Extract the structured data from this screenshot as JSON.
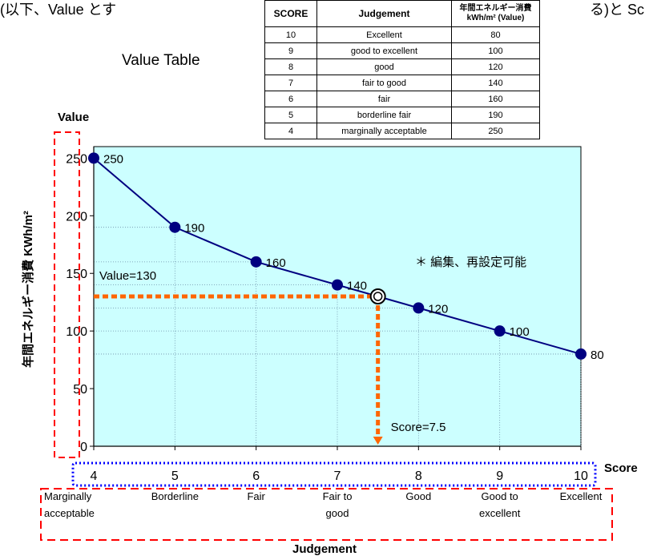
{
  "header": {
    "left_text": "(以下、Value とす",
    "right_text": "る)と Sc"
  },
  "value_table": {
    "title": "Value Table",
    "headers": [
      "SCORE",
      "Judgement",
      "年間エネルギー消費",
      "kWh/m² (Value)"
    ],
    "rows": [
      [
        "10",
        "Excellent",
        "80"
      ],
      [
        "9",
        "good to excellent",
        "100"
      ],
      [
        "8",
        "good",
        "120"
      ],
      [
        "7",
        "fair to good",
        "140"
      ],
      [
        "6",
        "fair",
        "160"
      ],
      [
        "5",
        "borderline fair",
        "190"
      ],
      [
        "4",
        "marginally acceptable",
        "250"
      ]
    ]
  },
  "colors": {
    "plot_bg": "#ccffff",
    "line": "#000080",
    "marker": "#000080",
    "guide": "#ff6600",
    "dashed_box_red": "#ff0000",
    "dotted_box_blue": "#0000ff"
  },
  "chart_data": {
    "type": "line",
    "title": "Value Table",
    "ylabel": "年間エネルギー消費 KWh/m²",
    "y_axis_title": "Value",
    "xlabel": "Score",
    "x_group_label": "Judgement",
    "x": [
      4,
      5,
      6,
      7,
      8,
      9,
      10
    ],
    "values": [
      250,
      190,
      160,
      140,
      120,
      100,
      80
    ],
    "data_labels": [
      "250",
      "190",
      "160",
      "140",
      "120",
      "100",
      "80"
    ],
    "xlim": [
      4,
      10
    ],
    "ylim": [
      0,
      260
    ],
    "y_ticks": [
      0,
      50,
      100,
      150,
      200,
      250
    ],
    "y_tick_labels": [
      "0",
      "50",
      "100",
      "150",
      "200",
      "250"
    ],
    "x_tick_labels": [
      "4",
      "5",
      "6",
      "7",
      "8",
      "9",
      "10"
    ],
    "judgement_labels": [
      [
        "Marginally",
        "acceptable"
      ],
      [
        "Borderline"
      ],
      [
        "Fair"
      ],
      [
        "Fair to",
        "good"
      ],
      [
        "Good"
      ],
      [
        "Good to",
        "excellent"
      ],
      [
        "Excellent"
      ]
    ],
    "grid": true,
    "highlight": {
      "x": 7.5,
      "y": 130,
      "value_label": "Value=130",
      "score_label": "Score=7.5"
    },
    "note": "＊ 編集、再設定可能"
  }
}
